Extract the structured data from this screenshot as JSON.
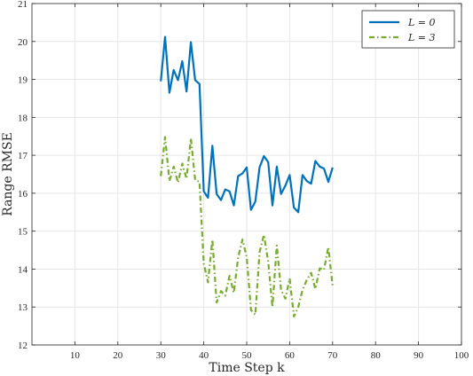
{
  "chart_data": {
    "type": "line",
    "xlabel": "Time Step k",
    "ylabel": "Range RMSE",
    "xlim": [
      0,
      100
    ],
    "ylim": [
      12,
      21
    ],
    "xticks": [
      10,
      20,
      30,
      40,
      50,
      60,
      70,
      80,
      90,
      100
    ],
    "yticks": [
      12,
      13,
      14,
      15,
      16,
      17,
      18,
      19,
      20,
      21
    ],
    "grid": true,
    "legend_position": "top-right",
    "x": [
      30,
      31,
      32,
      33,
      34,
      35,
      36,
      37,
      38,
      39,
      40,
      41,
      42,
      43,
      44,
      45,
      46,
      47,
      48,
      49,
      50,
      51,
      52,
      53,
      54,
      55,
      56,
      57,
      58,
      59,
      60,
      61,
      62,
      63,
      64,
      65,
      66,
      67,
      68,
      69,
      70
    ],
    "series": [
      {
        "name": "L = 0",
        "color": "#0072BD",
        "style": "solid",
        "values": [
          18.95,
          20.12,
          18.65,
          19.25,
          18.98,
          19.48,
          18.68,
          19.98,
          18.98,
          18.88,
          16.05,
          15.88,
          17.25,
          15.98,
          15.82,
          16.1,
          16.05,
          15.68,
          16.45,
          16.52,
          16.68,
          15.56,
          15.78,
          16.68,
          16.98,
          16.82,
          15.68,
          16.7,
          15.98,
          16.2,
          16.48,
          15.62,
          15.5,
          16.48,
          16.32,
          16.25,
          16.85,
          16.7,
          16.65,
          16.3,
          16.68
        ]
      },
      {
        "name": "L = 3",
        "color": "#77AC30",
        "style": "dash-dot",
        "values": [
          16.45,
          17.48,
          16.32,
          16.7,
          16.28,
          16.78,
          16.38,
          17.45,
          16.35,
          16.3,
          14.15,
          13.65,
          14.78,
          13.12,
          13.42,
          13.3,
          13.82,
          13.38,
          14.3,
          14.78,
          14.32,
          12.92,
          12.8,
          14.45,
          14.9,
          14.2,
          13.0,
          14.62,
          13.45,
          13.22,
          13.75,
          12.75,
          13.0,
          13.45,
          13.72,
          13.9,
          13.48,
          14.02,
          13.98,
          14.58,
          13.55
        ]
      }
    ]
  }
}
